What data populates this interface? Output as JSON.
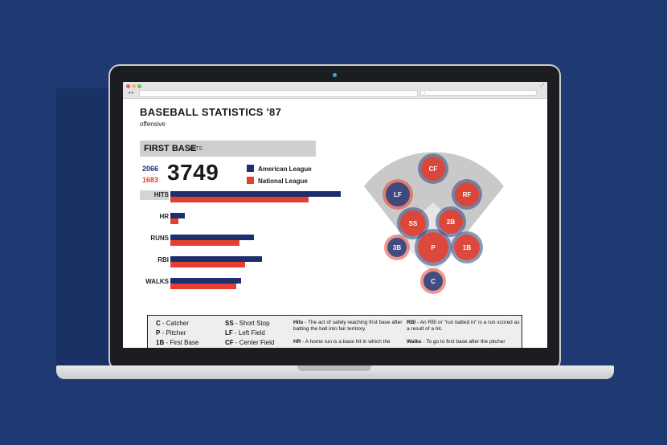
{
  "browser": {
    "search_placeholder": ""
  },
  "page": {
    "title": "BASEBALL STATISTICS '87",
    "subtitle": "offensive"
  },
  "section": {
    "position": "FIRST BASE",
    "stat": "HITS"
  },
  "totals": {
    "american": "2066",
    "national": "1683",
    "combined": "3749"
  },
  "legend": {
    "american": "American League",
    "national": "National League"
  },
  "colors": {
    "american": "#1f2f6e",
    "national": "#e5402f",
    "page_bg": "#1f3a72"
  },
  "chart_data": {
    "type": "bar",
    "orientation": "horizontal",
    "categories": [
      "HITS",
      "HR",
      "RUNS",
      "RBI",
      "WALKS"
    ],
    "series": [
      {
        "name": "American League",
        "values": [
          2066,
          178,
          1011,
          1116,
          857
        ]
      },
      {
        "name": "National League",
        "values": [
          1683,
          102,
          843,
          906,
          799
        ]
      }
    ],
    "xlim": [
      0,
      2100
    ]
  },
  "field": {
    "positions": [
      {
        "label": "CF",
        "league": "national"
      },
      {
        "label": "LF",
        "league": "american"
      },
      {
        "label": "RF",
        "league": "national"
      },
      {
        "label": "SS",
        "league": "national"
      },
      {
        "label": "2B",
        "league": "national"
      },
      {
        "label": "3B",
        "league": "american"
      },
      {
        "label": "P",
        "league": "national"
      },
      {
        "label": "1B",
        "league": "national"
      },
      {
        "label": "C",
        "league": "american"
      }
    ]
  },
  "key": {
    "col1": [
      {
        "abbr": "C",
        "text": " - Catcher"
      },
      {
        "abbr": "P",
        "text": " - Pitcher"
      },
      {
        "abbr": "1B",
        "text": " - First Base"
      }
    ],
    "col2": [
      {
        "abbr": "SS",
        "text": " - Short Stop"
      },
      {
        "abbr": "LF",
        "text": " - Left Field"
      },
      {
        "abbr": "CF",
        "text": " - Center Field"
      }
    ],
    "col3": [
      {
        "abbr": "Hits",
        "text": " - The act of safely reaching first base after batting the ball into fair territory."
      },
      {
        "abbr": "HR",
        "text": " - A home run is a base hit in which the"
      }
    ],
    "col4": [
      {
        "abbr": "RBI",
        "text": " - An RBI or \"run batted in\" is a run scored as a result of a hit."
      },
      {
        "abbr": "Walks",
        "text": " - To go to first base after the pitcher"
      }
    ]
  }
}
